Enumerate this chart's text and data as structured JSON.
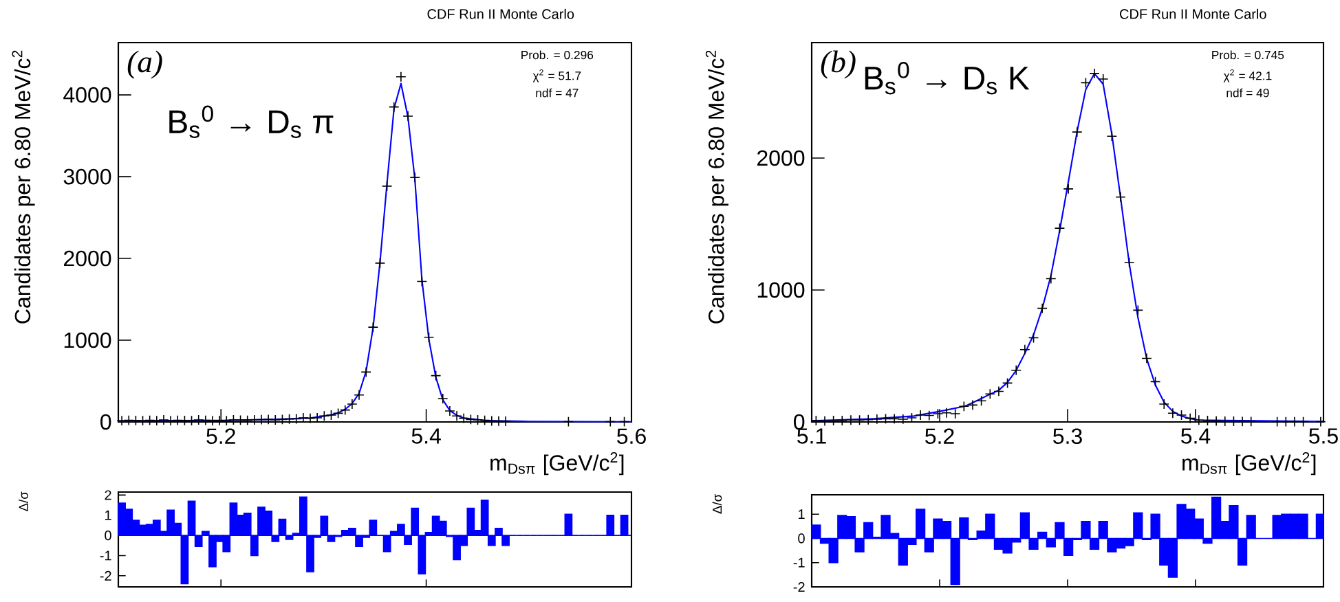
{
  "chart_data": [
    {
      "type": "scatter",
      "title": "CDF Run II Monte Carlo",
      "xlabel": "m$_{Dsπ}$ [GeV/c$^{2}$]",
      "ylabel": "Candidates per 6.80 MeV/c$^{2}$",
      "annotations": [
        "(a)",
        "B$_{s}$$^{0}$ → D$_{s}$ π",
        "Prob. = 0.296",
        "χ$^{2}$ = 51.7",
        "ndf = 47"
      ],
      "xlim": [
        5.1,
        5.6
      ],
      "ylim": [
        0,
        4640
      ],
      "xticks": [
        5.2,
        5.4,
        5.6
      ],
      "yticks": [
        0,
        1000,
        2000,
        3000,
        4000
      ],
      "series": [
        {
          "type": "scatter",
          "color": "#000000",
          "marker": "cross",
          "x": [
            5.1034,
            5.1102,
            5.117,
            5.1238,
            5.1306,
            5.1374,
            5.1442,
            5.151,
            5.1578,
            5.1646,
            5.1714,
            5.1782,
            5.185,
            5.1918,
            5.1986,
            5.2054,
            5.2122,
            5.219,
            5.2258,
            5.2326,
            5.2394,
            5.2462,
            5.253,
            5.2598,
            5.2666,
            5.2734,
            5.2802,
            5.287,
            5.2938,
            5.3006,
            5.3074,
            5.3142,
            5.321,
            5.3278,
            5.3346,
            5.3414,
            5.3482,
            5.355,
            5.3618,
            5.3686,
            5.3754,
            5.3822,
            5.389,
            5.3958,
            5.4026,
            5.4094,
            5.4162,
            5.423,
            5.4298,
            5.4366,
            5.4434,
            5.4502,
            5.457,
            5.4638,
            5.4706,
            5.4774,
            5.5386,
            5.5794,
            5.593
          ],
          "values": [
            15,
            20,
            18,
            15,
            20,
            15,
            25,
            15,
            20,
            18,
            15,
            25,
            20,
            15,
            18,
            15,
            25,
            22,
            20,
            25,
            28,
            30,
            25,
            30,
            35,
            38,
            50,
            45,
            50,
            73,
            84,
            106,
            146,
            218,
            330,
            610,
            1159,
            1943,
            2884,
            3853,
            4222,
            3741,
            2990,
            1719,
            1036,
            566,
            286,
            134,
            73,
            45,
            30,
            25,
            20,
            12,
            10,
            8,
            3,
            3,
            3
          ]
        },
        {
          "type": "line",
          "color": "#0000ff",
          "x": [
            5.1,
            5.2,
            5.25,
            5.287,
            5.3006,
            5.3074,
            5.3142,
            5.321,
            5.3278,
            5.3346,
            5.3414,
            5.3482,
            5.355,
            5.3618,
            5.3686,
            5.3754,
            5.3822,
            5.389,
            5.3958,
            5.4026,
            5.4094,
            5.4162,
            5.423,
            5.4298,
            5.4366,
            5.46,
            5.5,
            5.6
          ],
          "values": [
            12,
            18,
            30,
            48,
            72,
            85,
            110,
            155,
            225,
            350,
            620,
            1150,
            1960,
            2920,
            3830,
            4140,
            3730,
            2960,
            1740,
            1010,
            545,
            270,
            140,
            80,
            48,
            15,
            6,
            2
          ]
        }
      ]
    },
    {
      "type": "scatter",
      "title": "CDF Run II Monte Carlo",
      "xlabel": "m$_{Dsπ}$ [GeV/c$^{2}$]",
      "ylabel": "Candidates per 6.80 MeV/c$^{2}$",
      "annotations": [
        "(b)",
        "B$_{s}$$^{0}$ → D$_{s}$ K",
        "Prob. = 0.745",
        "χ$^{2}$ = 42.1",
        "ndf = 49"
      ],
      "xlim": [
        5.1,
        5.5
      ],
      "ylim": [
        0,
        2875
      ],
      "xticks": [
        5.1,
        5.2,
        5.3,
        5.4,
        5.5
      ],
      "yticks": [
        0,
        1000,
        2000
      ],
      "series": [
        {
          "type": "scatter",
          "color": "#000000",
          "marker": "cross",
          "x": [
            5.1034,
            5.1102,
            5.117,
            5.1238,
            5.1306,
            5.1374,
            5.1442,
            5.151,
            5.1578,
            5.1646,
            5.1714,
            5.1782,
            5.185,
            5.1918,
            5.1986,
            5.2054,
            5.2122,
            5.219,
            5.2258,
            5.2326,
            5.2394,
            5.2462,
            5.253,
            5.2598,
            5.2666,
            5.2734,
            5.2802,
            5.287,
            5.2938,
            5.3006,
            5.3074,
            5.3142,
            5.321,
            5.3278,
            5.3346,
            5.3414,
            5.3482,
            5.355,
            5.3618,
            5.3686,
            5.3754,
            5.3822,
            5.389,
            5.3958,
            5.4026,
            5.4094,
            5.4162,
            5.423,
            5.4298,
            5.4366,
            5.4434,
            5.4638,
            5.4706,
            5.4774,
            5.4842,
            5.4978
          ],
          "values": [
            10,
            7,
            10,
            10,
            14,
            14,
            17,
            21,
            24,
            24,
            21,
            31,
            52,
            49,
            62,
            69,
            62,
            118,
            128,
            160,
            212,
            232,
            295,
            392,
            548,
            638,
            861,
            1086,
            1468,
            1766,
            2197,
            2571,
            2641,
            2599,
            2165,
            1704,
            1208,
            847,
            482,
            305,
            135,
            66,
            52,
            28,
            14,
            10,
            7,
            5,
            5,
            3,
            3,
            2,
            2,
            2,
            2,
            2
          ]
        },
        {
          "type": "line",
          "color": "#0000ff",
          "x": [
            5.1,
            5.15,
            5.18,
            5.2,
            5.22,
            5.23,
            5.2394,
            5.2462,
            5.253,
            5.2598,
            5.2666,
            5.2734,
            5.2802,
            5.287,
            5.2938,
            5.3006,
            5.3074,
            5.3142,
            5.321,
            5.3278,
            5.3346,
            5.3414,
            5.3482,
            5.355,
            5.3618,
            5.3686,
            5.3754,
            5.3822,
            5.389,
            5.3958,
            5.4026,
            5.45,
            5.5
          ],
          "values": [
            8,
            25,
            45,
            80,
            120,
            165,
            210,
            240,
            300,
            390,
            520,
            660,
            860,
            1110,
            1450,
            1820,
            2200,
            2520,
            2640,
            2560,
            2180,
            1700,
            1200,
            790,
            480,
            280,
            150,
            80,
            45,
            25,
            14,
            8,
            3
          ]
        }
      ]
    },
    {
      "type": "histogram",
      "ylabel": "Δ/σ",
      "color": "#0000ff",
      "tick_labels": "y",
      "xlim": [
        5.1,
        5.6
      ],
      "ylim": [
        -2.55,
        2.15
      ],
      "xticks": [
        {
          "value": 5.2,
          "label": null
        },
        {
          "value": 5.4,
          "label": null
        },
        {
          "value": 5.6,
          "label": null
        }
      ],
      "yticks": [
        -2,
        -1,
        0,
        1,
        2
      ],
      "bins": [
        5.1,
        5.1068,
        5.1136,
        5.1204,
        5.1272,
        5.134,
        5.1408,
        5.1476,
        5.1544,
        5.1612,
        5.168,
        5.1748,
        5.1816,
        5.1884,
        5.1952,
        5.202,
        5.2088,
        5.2156,
        5.2224,
        5.2292,
        5.236,
        5.2428,
        5.2496,
        5.2564,
        5.2632,
        5.27,
        5.2768,
        5.2836,
        5.2904,
        5.2972,
        5.304,
        5.3108,
        5.3176,
        5.3244,
        5.3312,
        5.338,
        5.3448,
        5.3516,
        5.3584,
        5.3652,
        5.372,
        5.3788,
        5.3856,
        5.3924,
        5.3992,
        5.406,
        5.4128,
        5.4196,
        5.4264,
        5.4332,
        5.44,
        5.4468,
        5.4536,
        5.4604,
        5.4672,
        5.474,
        5.4808,
        5.4876,
        5.4944,
        5.5012,
        5.508,
        5.5148,
        5.5216,
        5.5284,
        5.5352,
        5.542,
        5.5488,
        5.5556,
        5.5624,
        5.5692,
        5.576,
        5.5828,
        5.5896,
        5.5964,
        5.6
      ],
      "values": [
        1.6,
        1.3,
        0.75,
        0.5,
        0.55,
        0.75,
        0.2,
        1.25,
        0.6,
        -2.4,
        1.7,
        -0.55,
        0.2,
        -1.55,
        -0.3,
        -0.8,
        1.6,
        1.0,
        1.1,
        -1.0,
        1.4,
        1.2,
        -0.3,
        0.8,
        -0.2,
        0.1,
        1.9,
        -1.8,
        -0.1,
        0.95,
        -0.3,
        -0.05,
        0.25,
        0.35,
        -0.55,
        -0.1,
        0.75,
        0.0,
        -0.8,
        0.2,
        0.55,
        -0.45,
        1.35,
        -1.9,
        0.15,
        0.95,
        0.7,
        -0.05,
        -1.2,
        -0.5,
        1.35,
        0.25,
        1.75,
        -0.5,
        0.35,
        -0.5,
        0,
        0,
        0,
        0,
        0,
        0,
        0,
        0,
        1.05,
        0,
        0,
        0,
        0,
        0,
        1.0,
        0,
        1.0,
        0
      ]
    },
    {
      "type": "histogram",
      "ylabel": "Δ/σ",
      "color": "#0000ff",
      "tick_labels": "y",
      "xlim": [
        5.1,
        5.5
      ],
      "ylim": [
        -2,
        1.8
      ],
      "xticks": [
        {
          "value": 5.1,
          "label": null
        },
        {
          "value": 5.2,
          "label": null
        },
        {
          "value": 5.3,
          "label": null
        },
        {
          "value": 5.4,
          "label": null
        },
        {
          "value": 5.5,
          "label": null
        }
      ],
      "yticks": [
        -2,
        -1,
        0,
        1
      ],
      "bins": [
        5.1,
        5.1068,
        5.1136,
        5.1204,
        5.1272,
        5.134,
        5.1408,
        5.1476,
        5.1544,
        5.1612,
        5.168,
        5.1748,
        5.1816,
        5.1884,
        5.1952,
        5.202,
        5.2088,
        5.2156,
        5.2224,
        5.2292,
        5.236,
        5.2428,
        5.2496,
        5.2564,
        5.2632,
        5.27,
        5.2768,
        5.2836,
        5.2904,
        5.2972,
        5.304,
        5.3108,
        5.3176,
        5.3244,
        5.3312,
        5.338,
        5.3448,
        5.3516,
        5.3584,
        5.3652,
        5.372,
        5.3788,
        5.3856,
        5.3924,
        5.3992,
        5.406,
        5.4128,
        5.4196,
        5.4264,
        5.4332,
        5.44,
        5.4468,
        5.4536,
        5.4604,
        5.4672,
        5.474,
        5.4808,
        5.4876,
        5.4944,
        5.5
      ],
      "values": [
        0.55,
        -0.2,
        -1.0,
        0.95,
        0.9,
        -0.55,
        0.65,
        0.05,
        0.95,
        0.2,
        -1.1,
        -0.25,
        1.2,
        -0.55,
        0.8,
        0.7,
        -1.9,
        0.85,
        -0.05,
        0.3,
        1.0,
        -0.45,
        -0.6,
        -0.15,
        1.05,
        -0.45,
        0.25,
        -0.35,
        0.65,
        -0.7,
        -0.05,
        0.7,
        -0.45,
        0.7,
        -0.55,
        -0.4,
        -0.3,
        1.05,
        -0.05,
        1.0,
        -1.1,
        -1.6,
        1.4,
        1.2,
        0.8,
        -0.2,
        1.7,
        0.7,
        1.35,
        -1.1,
        0.95,
        0,
        0,
        0.95,
        1.0,
        1.0,
        1.0,
        0,
        1.0
      ]
    }
  ]
}
